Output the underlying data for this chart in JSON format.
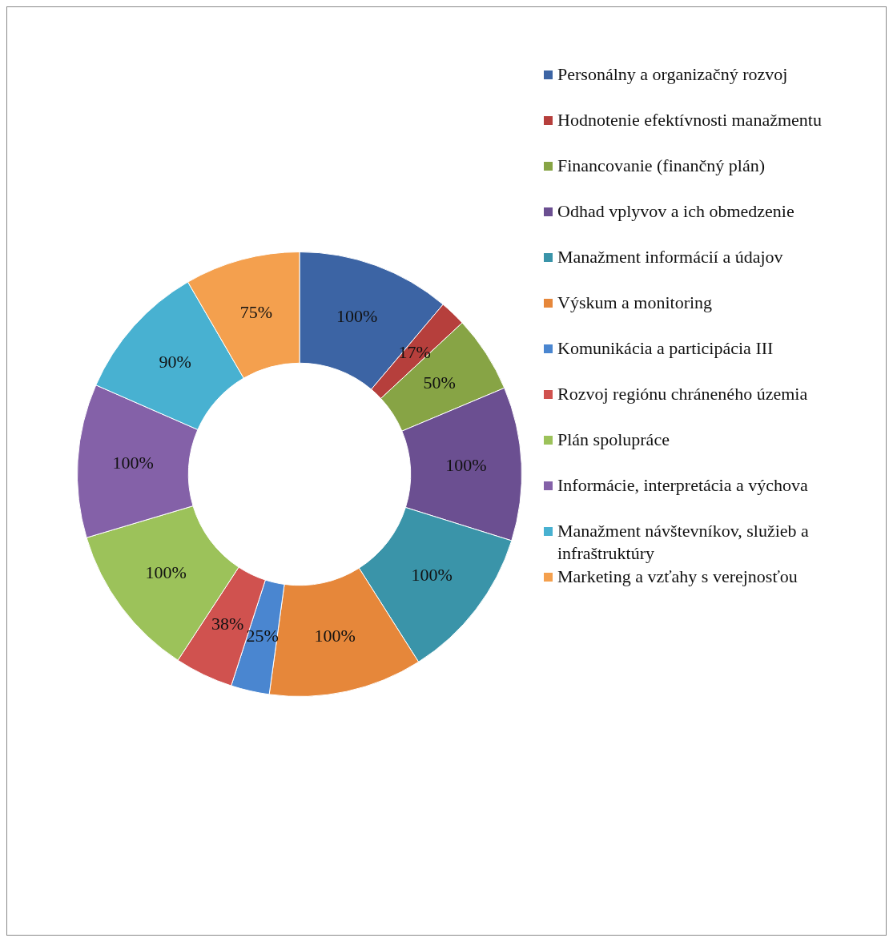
{
  "chart_data": {
    "type": "donut",
    "categories": [
      "Personálny a organizačný rozvoj",
      "Hodnotenie efektívnosti manažmentu",
      "Financovanie (finančný plán)",
      "Odhad vplyvov a ich obmedzenie",
      "Manažment informácií a údajov",
      "Výskum a monitoring",
      "Komunikácia a participácia III",
      "Rozvoj regiónu chráneného územia",
      "Plán spolupráce",
      "Informácie, interpretácia a výchova",
      "Manažment návštevníkov, služieb a infraštruktúry",
      "Marketing a vzťahy s verejnosťou"
    ],
    "values": [
      100,
      17,
      50,
      100,
      100,
      100,
      25,
      38,
      100,
      100,
      90,
      75
    ],
    "value_labels": [
      "100%",
      "17%",
      "50%",
      "100%",
      "100%",
      "100%",
      "25%",
      "38%",
      "100%",
      "100%",
      "90%",
      "75%"
    ],
    "colors": [
      "#3c64a4",
      "#b63f3c",
      "#87a445",
      "#6b4f91",
      "#3a94a9",
      "#e6873a",
      "#4a86d0",
      "#d0524f",
      "#9cc25a",
      "#8461a8",
      "#48b1d1",
      "#f4a04e"
    ],
    "legend": "right"
  }
}
